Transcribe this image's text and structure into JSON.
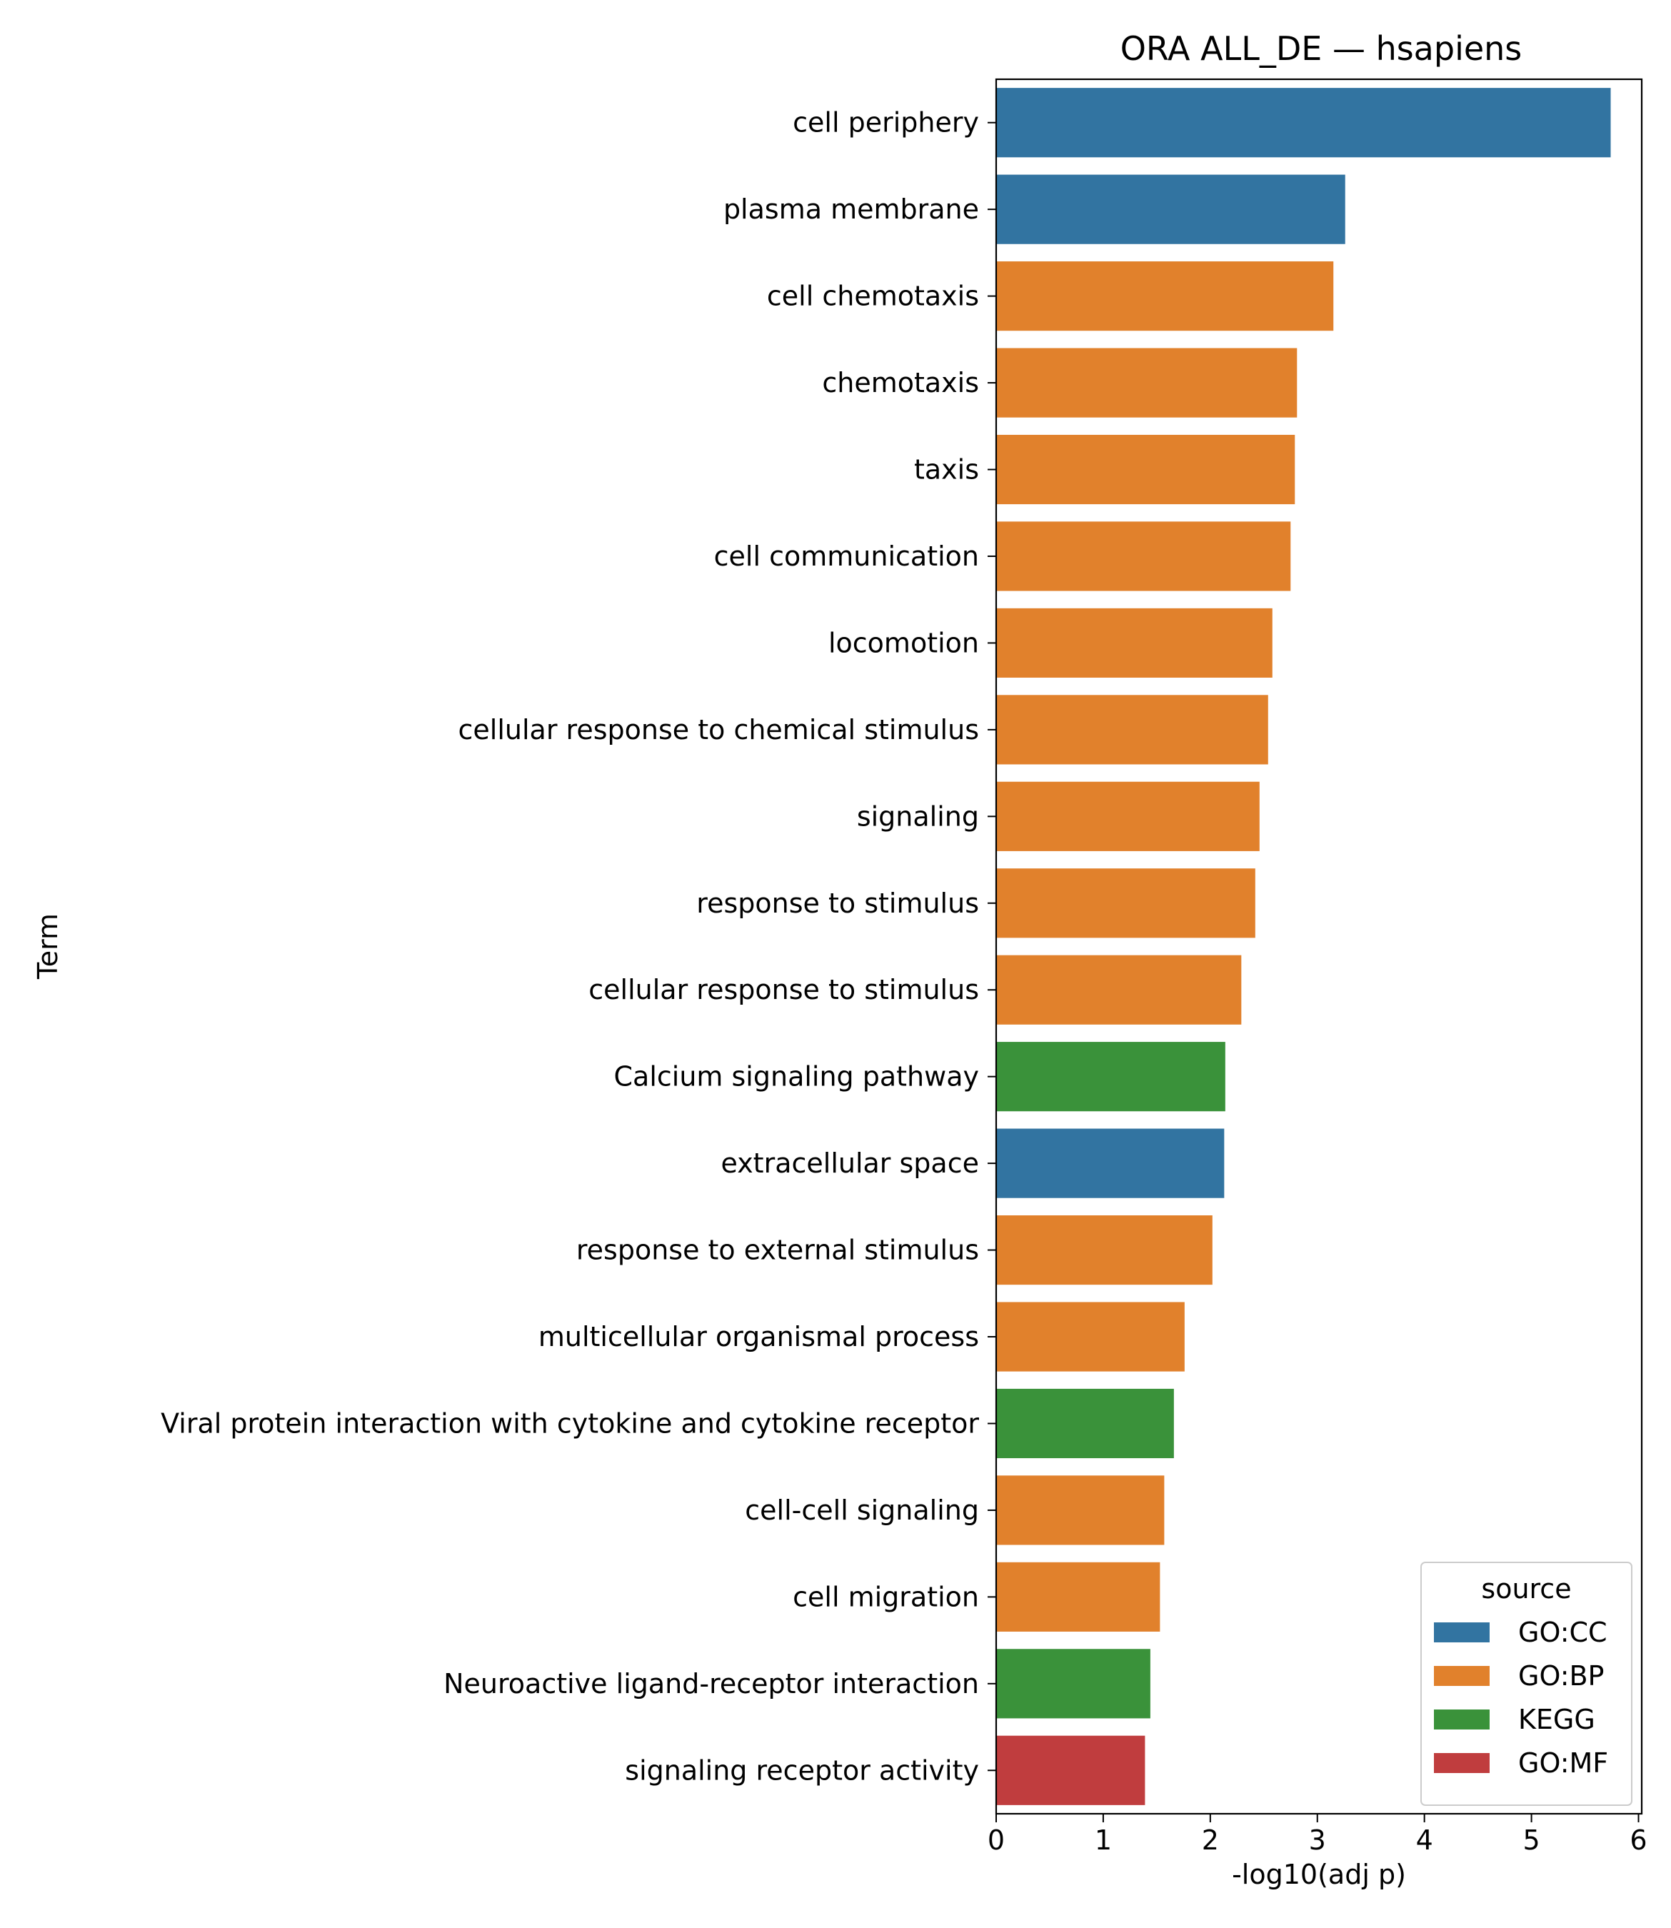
{
  "chart_data": {
    "type": "bar",
    "orientation": "horizontal",
    "title": "ORA ALL_DE — hsapiens",
    "xlabel": "-log10(adj p)",
    "ylabel": "Term",
    "xlim": [
      0,
      6.03
    ],
    "xticks": [
      0,
      1,
      2,
      3,
      4,
      5,
      6
    ],
    "grid": false,
    "legend": {
      "title": "source",
      "position": "bottom-right",
      "entries": [
        {
          "name": "GO:CC",
          "color": "#3274a1"
        },
        {
          "name": "GO:BP",
          "color": "#e1812c"
        },
        {
          "name": "KEGG",
          "color": "#3a923a"
        },
        {
          "name": "GO:MF",
          "color": "#c03d3e"
        }
      ]
    },
    "bars": [
      {
        "term": "cell periphery",
        "value": 5.74,
        "source": "GO:CC"
      },
      {
        "term": "plasma membrane",
        "value": 3.26,
        "source": "GO:CC"
      },
      {
        "term": "cell chemotaxis",
        "value": 3.15,
        "source": "GO:BP"
      },
      {
        "term": "chemotaxis",
        "value": 2.81,
        "source": "GO:BP"
      },
      {
        "term": "taxis",
        "value": 2.79,
        "source": "GO:BP"
      },
      {
        "term": "cell communication",
        "value": 2.75,
        "source": "GO:BP"
      },
      {
        "term": "locomotion",
        "value": 2.58,
        "source": "GO:BP"
      },
      {
        "term": "cellular response to chemical stimulus",
        "value": 2.54,
        "source": "GO:BP"
      },
      {
        "term": "signaling",
        "value": 2.46,
        "source": "GO:BP"
      },
      {
        "term": "response to stimulus",
        "value": 2.42,
        "source": "GO:BP"
      },
      {
        "term": "cellular response to stimulus",
        "value": 2.29,
        "source": "GO:BP"
      },
      {
        "term": "Calcium signaling pathway",
        "value": 2.14,
        "source": "KEGG"
      },
      {
        "term": "extracellular space",
        "value": 2.13,
        "source": "GO:CC"
      },
      {
        "term": "response to external stimulus",
        "value": 2.02,
        "source": "GO:BP"
      },
      {
        "term": "multicellular organismal process",
        "value": 1.76,
        "source": "GO:BP"
      },
      {
        "term": "Viral protein interaction with cytokine and cytokine receptor",
        "value": 1.66,
        "source": "KEGG"
      },
      {
        "term": "cell-cell signaling",
        "value": 1.57,
        "source": "GO:BP"
      },
      {
        "term": "cell migration",
        "value": 1.53,
        "source": "GO:BP"
      },
      {
        "term": "Neuroactive ligand-receptor interaction",
        "value": 1.44,
        "source": "KEGG"
      },
      {
        "term": "signaling receptor activity",
        "value": 1.39,
        "source": "GO:MF"
      }
    ]
  }
}
